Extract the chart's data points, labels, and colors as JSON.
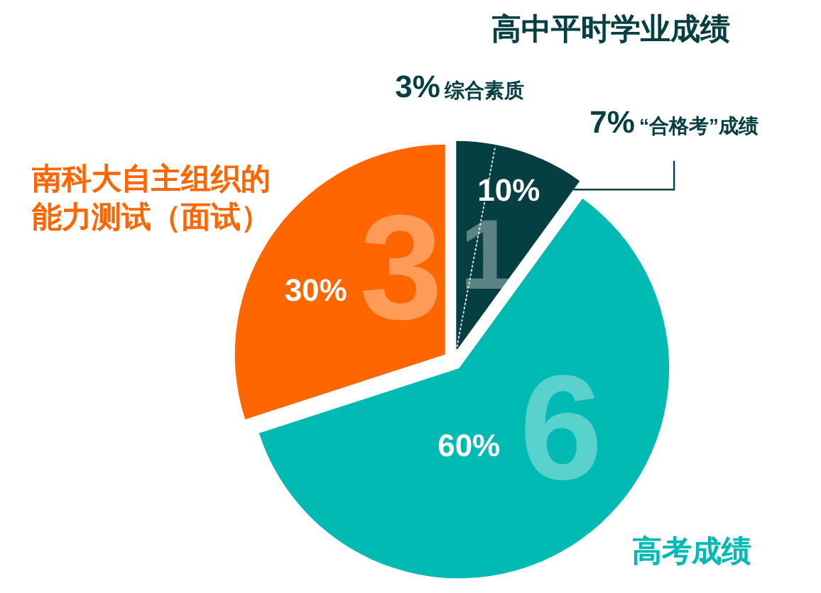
{
  "chart_data": {
    "type": "pie",
    "categories": [
      "综合素质",
      "“合格考”成绩",
      "高考成绩",
      "南科大自主组织的能力测试（面试）"
    ],
    "values": [
      3,
      7,
      60,
      30
    ],
    "colors": [
      "#063f42",
      "#063f42",
      "#00bab3",
      "#ff6600"
    ],
    "value_labels": [
      "3%",
      "7%",
      "60%",
      "30%"
    ],
    "annotations": [
      "高中平时学业成绩",
      "10%",
      "1",
      "6",
      "3"
    ]
  }
}
